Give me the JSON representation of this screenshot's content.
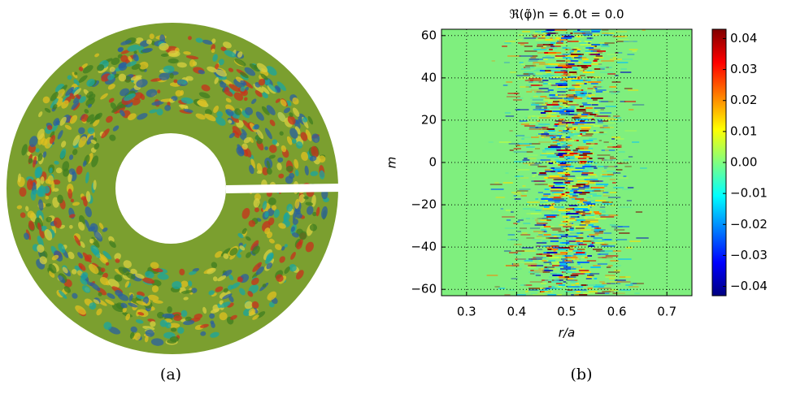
{
  "chart_data": [
    {
      "type": "polar-contour",
      "caption": "(a)"
    },
    {
      "type": "heatmap",
      "title": "ℜ(φ̃)n = 6.0t = 0.0",
      "xlabel": "r/a",
      "ylabel": "m",
      "xlim": [
        0.25,
        0.75
      ],
      "xticks": [
        0.3,
        0.4,
        0.5,
        0.6,
        0.7
      ],
      "ylim": [
        -63,
        63
      ],
      "yticks": [
        {
          "value": -60,
          "label": "−60"
        },
        {
          "value": -40,
          "label": "−40"
        },
        {
          "value": -20,
          "label": "−20"
        },
        0,
        20,
        40,
        60
      ],
      "grid": true,
      "colormap": "jet",
      "clim": [
        -0.043,
        0.043
      ],
      "cticks": [
        {
          "value": -0.04,
          "label": "−0.04"
        },
        {
          "value": -0.03,
          "label": "−0.03"
        },
        {
          "value": -0.02,
          "label": "−0.02"
        },
        {
          "value": -0.01,
          "label": "−0.01"
        },
        {
          "value": 0,
          "label": "0.00"
        },
        0.01,
        0.02,
        0.03,
        0.04
      ],
      "caption": "(b)"
    }
  ]
}
